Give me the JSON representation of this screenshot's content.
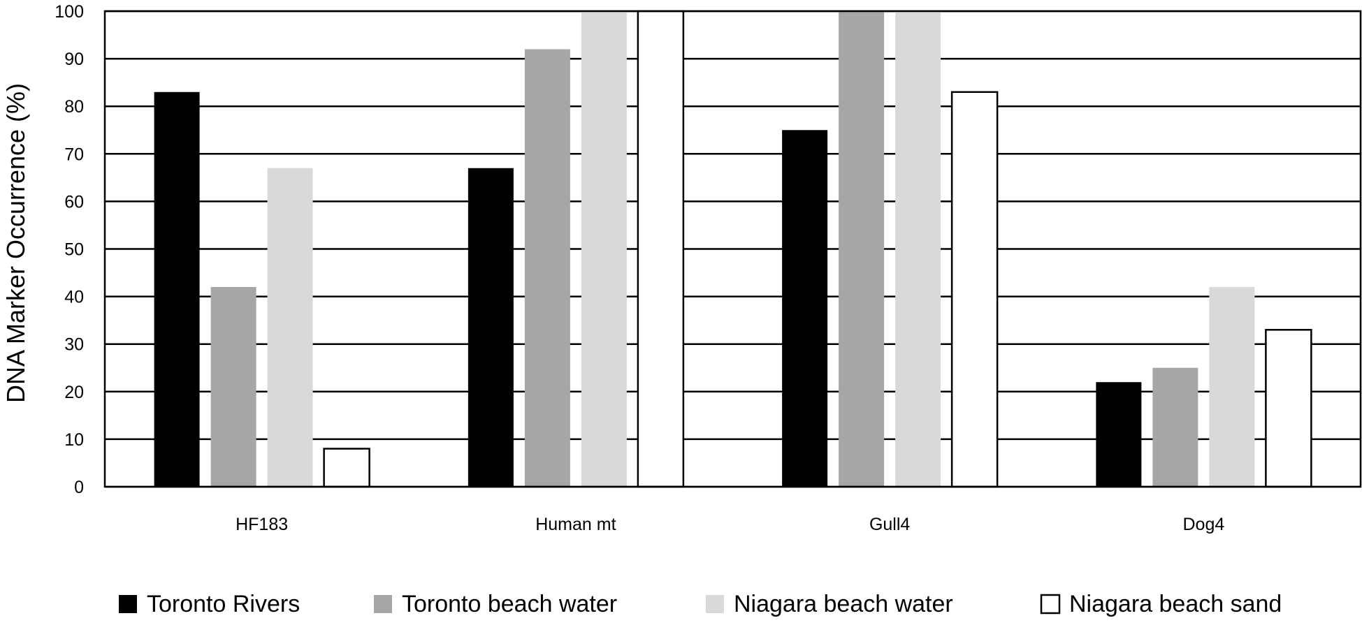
{
  "chart_data": {
    "type": "bar",
    "title": "",
    "xlabel": "",
    "ylabel": "DNA Marker Occurrence (%)",
    "ylim": [
      0,
      100
    ],
    "yticks": [
      0,
      10,
      20,
      30,
      40,
      50,
      60,
      70,
      80,
      90,
      100
    ],
    "categories": [
      "HF183",
      "Human mt",
      "Gull4",
      "Dog4"
    ],
    "grid": true,
    "legend_position": "bottom",
    "series": [
      {
        "name": "Toronto Rivers",
        "color": "#000000",
        "values": [
          83,
          67,
          75,
          22
        ]
      },
      {
        "name": "Toronto beach water",
        "color": "#a6a6a6",
        "values": [
          42,
          92,
          100,
          25
        ]
      },
      {
        "name": "Niagara beach water",
        "color": "#d9d9d9",
        "values": [
          67,
          100,
          100,
          42
        ]
      },
      {
        "name": "Niagara beach sand",
        "color": "#ffffff",
        "values": [
          8,
          100,
          83,
          33
        ]
      }
    ]
  }
}
